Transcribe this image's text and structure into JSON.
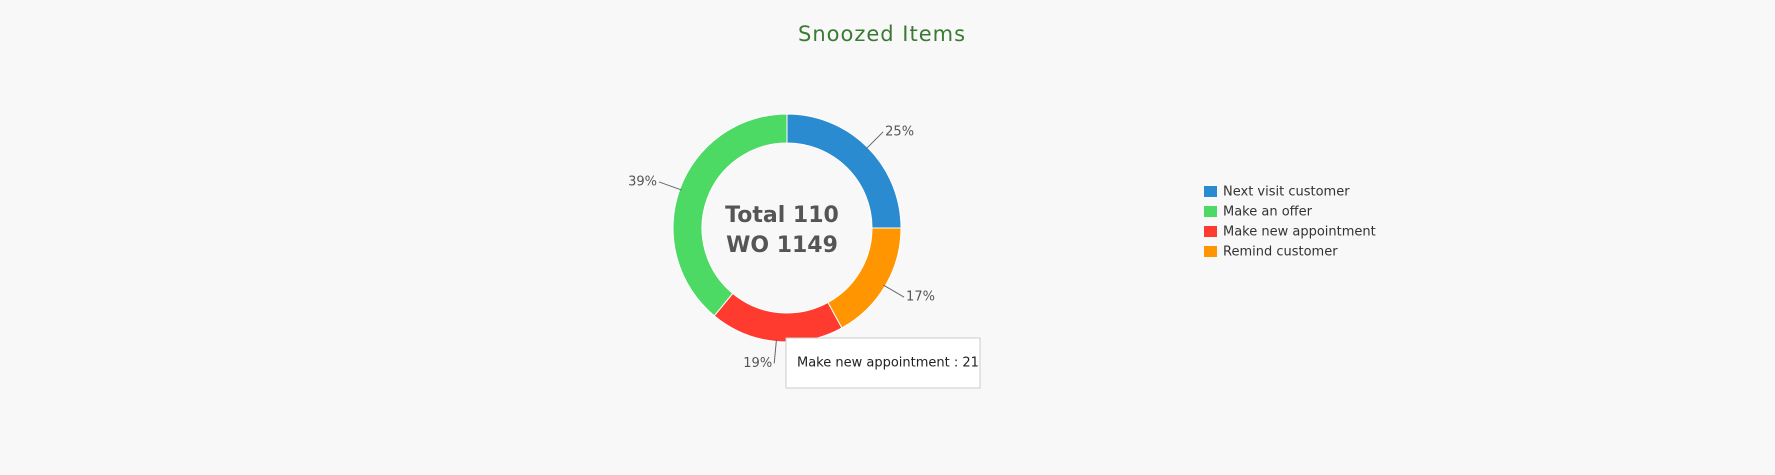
{
  "chart_data": {
    "type": "donut",
    "title": "Snoozed Items",
    "categories": [
      "Next visit customer",
      "Make an offer",
      "Make new appointment",
      "Remind customer"
    ],
    "values": [
      25,
      39,
      19,
      17
    ],
    "value_labels": [
      "25%",
      "39%",
      "19%",
      "17%"
    ],
    "colors": [
      "#2b8bd0",
      "#4cd964",
      "#ff3b30",
      "#ff9500"
    ],
    "center_text": [
      "Total 110",
      "WO 1149"
    ],
    "tooltip": "Make new appointment : 21",
    "legend": "right"
  }
}
